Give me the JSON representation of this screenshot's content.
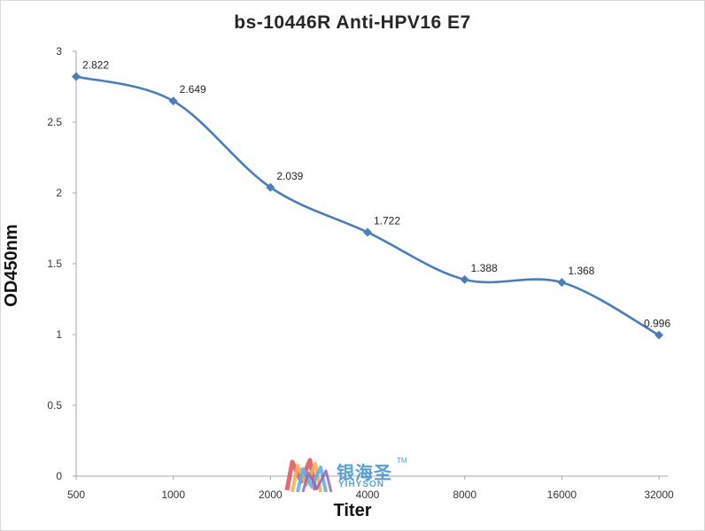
{
  "chart_data": {
    "type": "line",
    "title": "bs-10446R Anti-HPV16 E7",
    "xlabel": "Titer",
    "ylabel": "OD450nm",
    "categories": [
      "500",
      "1000",
      "2000",
      "4000",
      "8000",
      "16000",
      "32000"
    ],
    "series": [
      {
        "values": [
          2.822,
          2.649,
          2.039,
          1.722,
          1.388,
          1.368,
          0.996
        ],
        "data_labels": [
          "2.822",
          "2.649",
          "2.039",
          "1.722",
          "1.388",
          "1.368",
          "0.996"
        ],
        "color": "#4a7ebb"
      }
    ],
    "ylim": [
      0,
      3
    ],
    "yticks": [
      "0",
      "0.5",
      "1",
      "1.5",
      "2",
      "2.5",
      "3"
    ],
    "grid": false,
    "legend": "none",
    "smooth": true
  },
  "watermark": {
    "text_cn": "银海圣",
    "text_en": "YIHYSON",
    "tm": "TM"
  }
}
